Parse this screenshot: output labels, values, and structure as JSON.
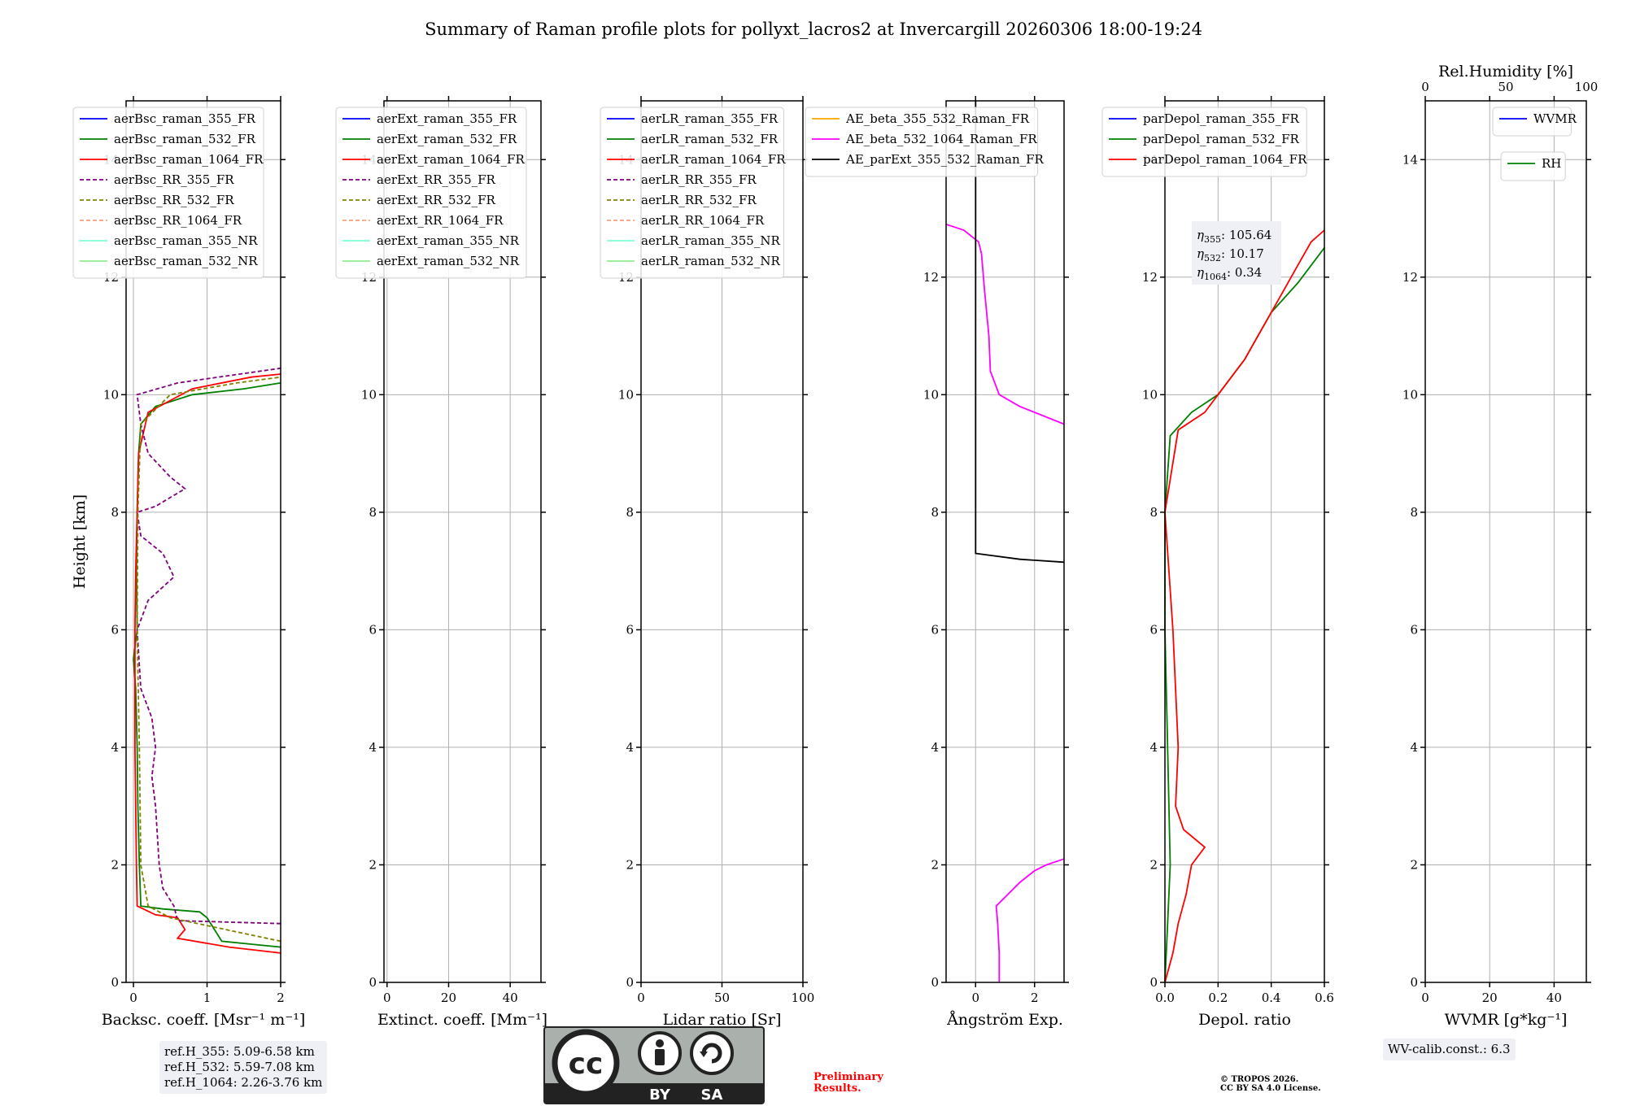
{
  "title": "Summary of Raman profile plots for pollyxt_lacros2 at Invercargill 20260306 18:00-19:24",
  "chart_data": [
    {
      "type": "line",
      "xlabel": "Backsc. coeff. [Msr⁻¹ m⁻¹]",
      "ylabel": "Height [km]",
      "xlim": [
        -0.1,
        2
      ],
      "ylim": [
        0,
        15
      ],
      "xticks": [
        "0",
        "1",
        "2"
      ],
      "yticks": [
        "0",
        "2",
        "4",
        "6",
        "8",
        "10",
        "12",
        "14"
      ],
      "legend": [
        {
          "name": "aerBsc_raman_355_FR",
          "color": "#0000ff",
          "dash": false
        },
        {
          "name": "aerBsc_raman_532_FR",
          "color": "#008000",
          "dash": false
        },
        {
          "name": "aerBsc_raman_1064_FR",
          "color": "#ff0000",
          "dash": false
        },
        {
          "name": "aerBsc_RR_355_FR",
          "color": "#800080",
          "dash": true
        },
        {
          "name": "aerBsc_RR_532_FR",
          "color": "#808000",
          "dash": true
        },
        {
          "name": "aerBsc_RR_1064_FR",
          "color": "#ffa07a",
          "dash": true
        },
        {
          "name": "aerBsc_raman_355_NR",
          "color": "#7fffd4",
          "dash": false
        },
        {
          "name": "aerBsc_raman_532_NR",
          "color": "#90ee90",
          "dash": false
        }
      ],
      "series": [
        {
          "name": "aerBsc_raman_532_FR",
          "color": "#008000",
          "dash": false,
          "points": [
            [
              2.0,
              0.6
            ],
            [
              1.2,
              0.7
            ],
            [
              1.1,
              0.9
            ],
            [
              1.0,
              1.1
            ],
            [
              0.9,
              1.2
            ],
            [
              0.4,
              1.25
            ],
            [
              0.1,
              1.3
            ],
            [
              0.08,
              2
            ],
            [
              0.06,
              3
            ],
            [
              0.05,
              4
            ],
            [
              0.03,
              5
            ],
            [
              0.0,
              5.5
            ],
            [
              0.05,
              6
            ],
            [
              0.04,
              7
            ],
            [
              0.05,
              8
            ],
            [
              0.07,
              9
            ],
            [
              0.1,
              9.5
            ],
            [
              0.3,
              9.8
            ],
            [
              0.8,
              10.0
            ],
            [
              1.5,
              10.1
            ],
            [
              2.0,
              10.2
            ]
          ]
        },
        {
          "name": "aerBsc_raman_1064_FR",
          "color": "#ff0000",
          "dash": false,
          "points": [
            [
              2.0,
              0.5
            ],
            [
              1.3,
              0.6
            ],
            [
              0.6,
              0.75
            ],
            [
              0.7,
              0.9
            ],
            [
              0.6,
              1.1
            ],
            [
              0.3,
              1.15
            ],
            [
              0.05,
              1.3
            ],
            [
              0.04,
              2
            ],
            [
              0.03,
              3
            ],
            [
              0.02,
              4
            ],
            [
              0.02,
              5
            ],
            [
              0.02,
              6
            ],
            [
              0.03,
              7
            ],
            [
              0.05,
              8
            ],
            [
              0.07,
              9
            ],
            [
              0.2,
              9.7
            ],
            [
              0.8,
              10.1
            ],
            [
              1.6,
              10.3
            ],
            [
              2.0,
              10.35
            ]
          ]
        },
        {
          "name": "aerBsc_RR_355_FR",
          "color": "#800080",
          "dash": true,
          "points": [
            [
              2.0,
              1.0
            ],
            [
              0.6,
              1.05
            ],
            [
              0.55,
              1.3
            ],
            [
              0.4,
              1.6
            ],
            [
              0.35,
              2
            ],
            [
              0.3,
              3
            ],
            [
              0.25,
              3.5
            ],
            [
              0.3,
              4
            ],
            [
              0.25,
              4.5
            ],
            [
              0.1,
              5
            ],
            [
              0.05,
              6
            ],
            [
              0.2,
              6.5
            ],
            [
              0.55,
              6.9
            ],
            [
              0.4,
              7.3
            ],
            [
              0.1,
              7.6
            ],
            [
              0.05,
              8
            ],
            [
              0.3,
              8.1
            ],
            [
              0.7,
              8.4
            ],
            [
              0.5,
              8.6
            ],
            [
              0.2,
              9
            ],
            [
              0.1,
              9.5
            ],
            [
              0.05,
              10
            ],
            [
              0.6,
              10.2
            ],
            [
              2.0,
              10.45
            ]
          ]
        },
        {
          "name": "aerBsc_RR_532_FR",
          "color": "#808000",
          "dash": true,
          "points": [
            [
              2.0,
              0.7
            ],
            [
              0.5,
              1.1
            ],
            [
              0.2,
              1.3
            ],
            [
              0.1,
              2
            ],
            [
              0.08,
              4
            ],
            [
              0.05,
              6
            ],
            [
              0.06,
              8
            ],
            [
              0.1,
              9.5
            ],
            [
              0.5,
              10
            ],
            [
              1.4,
              10.2
            ],
            [
              2.0,
              10.3
            ]
          ]
        }
      ]
    },
    {
      "type": "line",
      "xlabel": "Extinct. coeff. [Mm⁻¹]",
      "xlim": [
        -1,
        50
      ],
      "ylim": [
        0,
        15
      ],
      "xticks": [
        "0",
        "20",
        "40"
      ],
      "yticks": [
        "0",
        "2",
        "4",
        "6",
        "8",
        "10",
        "12",
        "14"
      ],
      "legend": [
        {
          "name": "aerExt_raman_355_FR",
          "color": "#0000ff",
          "dash": false
        },
        {
          "name": "aerExt_raman_532_FR",
          "color": "#008000",
          "dash": false
        },
        {
          "name": "aerExt_raman_1064_FR",
          "color": "#ff0000",
          "dash": false
        },
        {
          "name": "aerExt_RR_355_FR",
          "color": "#800080",
          "dash": true
        },
        {
          "name": "aerExt_RR_532_FR",
          "color": "#808000",
          "dash": true
        },
        {
          "name": "aerExt_RR_1064_FR",
          "color": "#ffa07a",
          "dash": true
        },
        {
          "name": "aerExt_raman_355_NR",
          "color": "#7fffd4",
          "dash": false
        },
        {
          "name": "aerExt_raman_532_NR",
          "color": "#90ee90",
          "dash": false
        }
      ]
    },
    {
      "type": "line",
      "xlabel": "Lidar ratio [Sr]",
      "xlim": [
        0,
        100
      ],
      "ylim": [
        0,
        15
      ],
      "xticks": [
        "0",
        "50",
        "100"
      ],
      "yticks": [
        "0",
        "2",
        "4",
        "6",
        "8",
        "10",
        "12",
        "14"
      ],
      "legend": [
        {
          "name": "aerLR_raman_355_FR",
          "color": "#0000ff",
          "dash": false
        },
        {
          "name": "aerLR_raman_532_FR",
          "color": "#008000",
          "dash": false
        },
        {
          "name": "aerLR_raman_1064_FR",
          "color": "#ff0000",
          "dash": false
        },
        {
          "name": "aerLR_RR_355_FR",
          "color": "#800080",
          "dash": true
        },
        {
          "name": "aerLR_RR_532_FR",
          "color": "#808000",
          "dash": true
        },
        {
          "name": "aerLR_RR_1064_FR",
          "color": "#ffa07a",
          "dash": true
        },
        {
          "name": "aerLR_raman_355_NR",
          "color": "#7fffd4",
          "dash": false
        },
        {
          "name": "aerLR_raman_532_NR",
          "color": "#90ee90",
          "dash": false
        }
      ]
    },
    {
      "type": "line",
      "xlabel": "Ångström Exp.",
      "xlim": [
        -1,
        3
      ],
      "ylim": [
        0,
        15
      ],
      "xticks": [
        "0",
        "2"
      ],
      "yticks": [
        "0",
        "2",
        "4",
        "6",
        "8",
        "10",
        "12"
      ],
      "legend": [
        {
          "name": "AE_beta_355_532_Raman_FR",
          "color": "#ffa500",
          "dash": false
        },
        {
          "name": "AE_beta_532_1064_Raman_FR",
          "color": "#ff00ff",
          "dash": false
        },
        {
          "name": "AE_parExt_355_532_Raman_FR",
          "color": "#000000",
          "dash": false
        }
      ],
      "series": [
        {
          "name": "AE_beta_532_1064_Raman_FR",
          "color": "#ff00ff",
          "dash": false,
          "points": [
            [
              0.8,
              0
            ],
            [
              0.8,
              0.5
            ],
            [
              0.75,
              1.0
            ],
            [
              0.7,
              1.3
            ],
            [
              1.1,
              1.5
            ],
            [
              1.5,
              1.7
            ],
            [
              2.0,
              1.9
            ],
            [
              2.4,
              2.0
            ],
            [
              3.0,
              2.1
            ]
          ]
        },
        {
          "name": "AE_beta_532_1064_Raman_FR (upper)",
          "color": "#ff00ff",
          "dash": false,
          "points": [
            [
              3.0,
              9.5
            ],
            [
              1.5,
              9.8
            ],
            [
              0.8,
              10.0
            ],
            [
              0.5,
              10.4
            ],
            [
              0.45,
              11
            ],
            [
              0.3,
              11.8
            ],
            [
              0.2,
              12.4
            ],
            [
              0.1,
              12.6
            ],
            [
              -0.4,
              12.8
            ],
            [
              -1.0,
              12.9
            ]
          ]
        },
        {
          "name": "AE_parExt_355_532_Raman_FR",
          "color": "#000000",
          "dash": false,
          "points": [
            [
              0,
              15
            ],
            [
              0,
              7.3
            ],
            [
              1.5,
              7.2
            ],
            [
              3.0,
              7.15
            ]
          ]
        }
      ]
    },
    {
      "type": "line",
      "xlabel": "Depol. ratio",
      "xlim": [
        0,
        0.6
      ],
      "ylim": [
        0,
        15
      ],
      "xticks": [
        "0.0",
        "0.2",
        "0.4",
        "0.6"
      ],
      "yticks": [
        "0",
        "2",
        "4",
        "6",
        "8",
        "10",
        "12",
        "14"
      ],
      "legend": [
        {
          "name": "parDepol_raman_355_FR",
          "color": "#0000ff",
          "dash": false
        },
        {
          "name": "parDepol_raman_532_FR",
          "color": "#008000",
          "dash": false
        },
        {
          "name": "parDepol_raman_1064_FR",
          "color": "#ff0000",
          "dash": false
        }
      ],
      "annotation": [
        {
          "sym": "η",
          "sub": "355",
          "val": ": 105.64"
        },
        {
          "sym": "η",
          "sub": "532",
          "val": ": 10.17"
        },
        {
          "sym": "η",
          "sub": "1064",
          "val": ": 0.34"
        }
      ],
      "series": [
        {
          "name": "parDepol_raman_532_FR",
          "color": "#008000",
          "dash": false,
          "points": [
            [
              0.0,
              0
            ],
            [
              0.01,
              1
            ],
            [
              0.02,
              2
            ],
            [
              0.01,
              4
            ],
            [
              0.0,
              6
            ],
            [
              0.0,
              8
            ],
            [
              0.02,
              9.3
            ],
            [
              0.1,
              9.7
            ],
            [
              0.2,
              10.0
            ],
            [
              0.3,
              10.6
            ],
            [
              0.35,
              11.0
            ],
            [
              0.4,
              11.4
            ],
            [
              0.5,
              11.9
            ],
            [
              0.55,
              12.2
            ],
            [
              0.6,
              12.5
            ]
          ]
        },
        {
          "name": "parDepol_raman_1064_FR",
          "color": "#ff0000",
          "dash": false,
          "points": [
            [
              0.0,
              0
            ],
            [
              0.03,
              0.5
            ],
            [
              0.05,
              1.0
            ],
            [
              0.08,
              1.5
            ],
            [
              0.1,
              2.0
            ],
            [
              0.15,
              2.3
            ],
            [
              0.07,
              2.6
            ],
            [
              0.04,
              3.0
            ],
            [
              0.05,
              4
            ],
            [
              0.03,
              6
            ],
            [
              0.0,
              8
            ],
            [
              0.05,
              9.4
            ],
            [
              0.15,
              9.7
            ],
            [
              0.2,
              10.0
            ],
            [
              0.3,
              10.6
            ],
            [
              0.35,
              11.0
            ],
            [
              0.4,
              11.4
            ],
            [
              0.45,
              11.8
            ],
            [
              0.5,
              12.2
            ],
            [
              0.55,
              12.6
            ],
            [
              0.6,
              12.8
            ]
          ]
        }
      ]
    },
    {
      "type": "line",
      "xlabel": "WVMR [g*kg⁻¹]",
      "x2label": "Rel.Humidity [%]",
      "xlim": [
        0,
        50
      ],
      "x2lim": [
        0,
        100
      ],
      "ylim": [
        0,
        15
      ],
      "xticks": [
        "0",
        "20",
        "40"
      ],
      "x2ticks": [
        "0",
        "50",
        "100"
      ],
      "yticks": [
        "0",
        "2",
        "4",
        "6",
        "8",
        "10",
        "12",
        "14"
      ],
      "legend": [
        {
          "name": "WVMR",
          "color": "#0000ff",
          "dash": false
        }
      ],
      "legend2": [
        {
          "name": "RH",
          "color": "#008000",
          "dash": false
        }
      ],
      "series": []
    }
  ],
  "refbox": [
    "ref.H_355: 5.09-6.58 km",
    "ref.H_532: 5.59-7.08 km",
    "ref.H_1064: 2.26-3.76 km"
  ],
  "wvcalib": "WV-calib.const.: 6.3",
  "preliminary": [
    "Preliminary",
    "Results."
  ],
  "copyright": [
    "© TROPOS 2026.",
    "CC BY SA 4.0 License."
  ],
  "license_badge": {
    "cc": "cc",
    "by": "BY",
    "sa": "SA"
  },
  "colors": {
    "grid": "#b0b0b0",
    "annot_bg": "#eef0f5",
    "preliminary": "#ff0000",
    "badge_bg": "#aab0ab",
    "badge_dark": "#222222"
  }
}
